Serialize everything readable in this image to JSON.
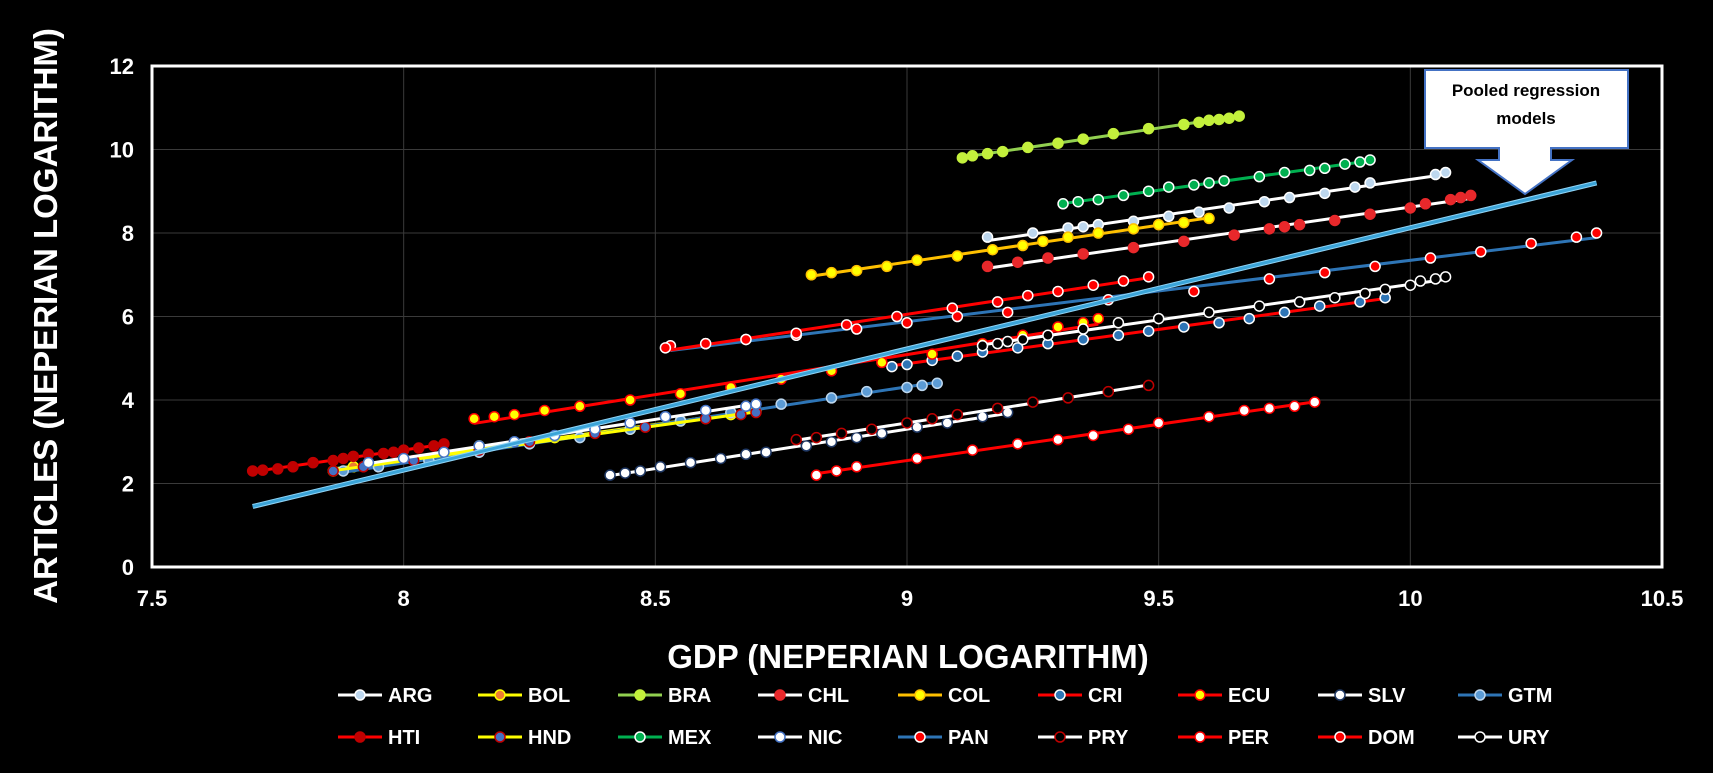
{
  "chart_data": {
    "type": "scatter",
    "title": "",
    "xlabel": "GDP (NEPERIAN LOGARITHM)",
    "ylabel": "ARTICLES (NEPERIAN LOGARITHM)",
    "xlim": [
      7.5,
      10.5
    ],
    "ylim": [
      0,
      12
    ],
    "xticks": [
      "7.5",
      "8",
      "8.5",
      "9",
      "9.5",
      "10",
      "10.5"
    ],
    "yticks": [
      "0",
      "2",
      "4",
      "6",
      "8",
      "10",
      "12"
    ],
    "grid": true,
    "legend_position": "bottom",
    "annotation": {
      "text": "Pooled regression models",
      "points_to": [
        10.24,
        8.95
      ]
    },
    "pooled_line": {
      "x": [
        7.7,
        10.37
      ],
      "y": [
        1.45,
        9.2
      ],
      "color": "#3BA4D8"
    },
    "series": [
      {
        "name": "ARG",
        "line_color": "#FFFFFF",
        "marker_fill": "#BDD7EE",
        "marker_edge": "#FFFFFF",
        "x": [
          9.16,
          9.25,
          9.32,
          9.35,
          9.38,
          9.45,
          9.52,
          9.58,
          9.64,
          9.71,
          9.76,
          9.83,
          9.89,
          9.92,
          10.05,
          10.07
        ],
        "y": [
          7.9,
          8.0,
          8.12,
          8.15,
          8.2,
          8.28,
          8.4,
          8.5,
          8.6,
          8.75,
          8.85,
          8.95,
          9.1,
          9.2,
          9.4,
          9.45
        ]
      },
      {
        "name": "BOL",
        "line_color": "#FFFF00",
        "marker_fill": "#ED7D31",
        "marker_edge": "#FFFF00",
        "x": [
          7.86,
          7.9,
          8.0,
          8.15,
          8.3,
          8.45,
          8.55,
          8.65,
          8.7
        ],
        "y": [
          2.3,
          2.4,
          2.6,
          2.9,
          3.1,
          3.3,
          3.5,
          3.65,
          3.75
        ]
      },
      {
        "name": "BRA",
        "line_color": "#92D050",
        "marker_fill": "#C3F03C",
        "marker_edge": "#C3F03C",
        "x": [
          9.11,
          9.13,
          9.16,
          9.19,
          9.24,
          9.3,
          9.35,
          9.41,
          9.48,
          9.55,
          9.58,
          9.6,
          9.62,
          9.64,
          9.66
        ],
        "y": [
          9.8,
          9.85,
          9.9,
          9.95,
          10.05,
          10.15,
          10.25,
          10.38,
          10.5,
          10.6,
          10.65,
          10.7,
          10.72,
          10.75,
          10.8
        ]
      },
      {
        "name": "CHL",
        "line_color": "#FFFFFF",
        "marker_fill": "#E8282B",
        "marker_edge": "#E8282B",
        "x": [
          9.16,
          9.22,
          9.28,
          9.35,
          9.45,
          9.55,
          9.65,
          9.72,
          9.75,
          9.78,
          9.85,
          9.92,
          10.0,
          10.03,
          10.08,
          10.1,
          10.12
        ],
        "y": [
          7.2,
          7.3,
          7.4,
          7.5,
          7.65,
          7.8,
          7.95,
          8.1,
          8.15,
          8.2,
          8.3,
          8.45,
          8.6,
          8.7,
          8.8,
          8.85,
          8.9
        ]
      },
      {
        "name": "COL",
        "line_color": "#FFC000",
        "marker_fill": "#FFFF00",
        "marker_edge": "#FFC000",
        "x": [
          8.81,
          8.85,
          8.9,
          8.96,
          9.02,
          9.1,
          9.17,
          9.23,
          9.27,
          9.32,
          9.38,
          9.45,
          9.5,
          9.55,
          9.6
        ],
        "y": [
          7.0,
          7.05,
          7.1,
          7.2,
          7.35,
          7.45,
          7.6,
          7.7,
          7.8,
          7.9,
          8.0,
          8.1,
          8.2,
          8.25,
          8.35
        ]
      },
      {
        "name": "CRI",
        "line_color": "#FF0000",
        "marker_fill": "#2E75B6",
        "marker_edge": "#FFFFFF",
        "x": [
          8.97,
          9.0,
          9.05,
          9.1,
          9.15,
          9.22,
          9.28,
          9.35,
          9.42,
          9.48,
          9.55,
          9.62,
          9.68,
          9.75,
          9.82,
          9.9,
          9.95
        ],
        "y": [
          4.8,
          4.85,
          4.95,
          5.05,
          5.15,
          5.25,
          5.35,
          5.45,
          5.55,
          5.65,
          5.75,
          5.85,
          5.95,
          6.1,
          6.25,
          6.35,
          6.45
        ]
      },
      {
        "name": "ECU",
        "line_color": "#FF0000",
        "marker_fill": "#FFFF00",
        "marker_edge": "#FF0000",
        "x": [
          8.14,
          8.18,
          8.22,
          8.28,
          8.35,
          8.45,
          8.55,
          8.65,
          8.75,
          8.85,
          8.95,
          9.05,
          9.15,
          9.23,
          9.3,
          9.35,
          9.38
        ],
        "y": [
          3.55,
          3.6,
          3.65,
          3.75,
          3.85,
          4.0,
          4.15,
          4.3,
          4.5,
          4.7,
          4.9,
          5.1,
          5.35,
          5.55,
          5.75,
          5.85,
          5.95
        ]
      },
      {
        "name": "SLV",
        "line_color": "#FFFFFF",
        "marker_fill": "#FFFFFF",
        "marker_edge": "#1F3864",
        "x": [
          8.41,
          8.44,
          8.47,
          8.51,
          8.57,
          8.63,
          8.68,
          8.72,
          8.8,
          8.85,
          8.9,
          8.95,
          9.02,
          9.08,
          9.15,
          9.2
        ],
        "y": [
          2.2,
          2.25,
          2.3,
          2.4,
          2.5,
          2.6,
          2.7,
          2.75,
          2.9,
          3.0,
          3.1,
          3.2,
          3.35,
          3.45,
          3.6,
          3.7
        ]
      },
      {
        "name": "GTM",
        "line_color": "#2E75B6",
        "marker_fill": "#5B9BD5",
        "marker_edge": "#BDD7EE",
        "x": [
          7.88,
          7.95,
          8.05,
          8.15,
          8.25,
          8.35,
          8.45,
          8.55,
          8.65,
          8.75,
          8.85,
          8.92,
          9.0,
          9.03,
          9.06
        ],
        "y": [
          2.3,
          2.4,
          2.55,
          2.75,
          2.95,
          3.1,
          3.3,
          3.5,
          3.7,
          3.9,
          4.05,
          4.2,
          4.3,
          4.35,
          4.4
        ]
      },
      {
        "name": "HTI",
        "line_color": "#FF0000",
        "marker_fill": "#C00000",
        "marker_edge": "#C00000",
        "x": [
          7.7,
          7.72,
          7.75,
          7.78,
          7.82,
          7.86,
          7.88,
          7.9,
          7.93,
          7.96,
          7.98,
          8.0,
          8.03,
          8.06,
          8.08
        ],
        "y": [
          2.3,
          2.32,
          2.35,
          2.4,
          2.5,
          2.55,
          2.6,
          2.65,
          2.7,
          2.72,
          2.75,
          2.8,
          2.85,
          2.9,
          2.95
        ]
      },
      {
        "name": "HND",
        "line_color": "#FFFF00",
        "marker_fill": "#4472C4",
        "marker_edge": "#C00000",
        "x": [
          7.86,
          7.92,
          8.02,
          8.15,
          8.25,
          8.38,
          8.48,
          8.6,
          8.67,
          8.7
        ],
        "y": [
          2.3,
          2.4,
          2.55,
          2.8,
          3.0,
          3.2,
          3.35,
          3.55,
          3.65,
          3.7
        ]
      },
      {
        "name": "MEX",
        "line_color": "#00B050",
        "marker_fill": "#00B050",
        "marker_edge": "#FFFFFF",
        "x": [
          9.31,
          9.34,
          9.38,
          9.43,
          9.48,
          9.52,
          9.57,
          9.6,
          9.63,
          9.7,
          9.75,
          9.8,
          9.83,
          9.87,
          9.9,
          9.92
        ],
        "y": [
          8.7,
          8.75,
          8.8,
          8.9,
          9.0,
          9.1,
          9.15,
          9.2,
          9.25,
          9.35,
          9.45,
          9.5,
          9.55,
          9.65,
          9.7,
          9.75
        ]
      },
      {
        "name": "NIC",
        "line_color": "#FFFFFF",
        "marker_fill": "#FFFFFF",
        "marker_edge": "#4472C4",
        "x": [
          7.93,
          8.0,
          8.08,
          8.15,
          8.22,
          8.3,
          8.38,
          8.45,
          8.52,
          8.6,
          8.68,
          8.7
        ],
        "y": [
          2.5,
          2.6,
          2.75,
          2.9,
          3.0,
          3.15,
          3.3,
          3.45,
          3.6,
          3.75,
          3.85,
          3.9
        ]
      },
      {
        "name": "PAN",
        "line_color": "#2E75B6",
        "marker_fill": "#FF0000",
        "marker_edge": "#FFFFFF",
        "x": [
          8.53,
          8.6,
          8.68,
          8.78,
          8.9,
          9.0,
          9.1,
          9.2,
          9.4,
          9.57,
          9.72,
          9.83,
          9.93,
          10.04,
          10.14,
          10.24,
          10.33,
          10.37
        ],
        "y": [
          5.3,
          5.35,
          5.45,
          5.55,
          5.7,
          5.85,
          6.0,
          6.1,
          6.4,
          6.6,
          6.9,
          7.05,
          7.2,
          7.4,
          7.55,
          7.75,
          7.9,
          8.0
        ]
      },
      {
        "name": "PRY",
        "line_color": "#FFFFFF",
        "marker_fill": "#000000",
        "marker_edge": "#C00000",
        "x": [
          8.78,
          8.82,
          8.87,
          8.93,
          9.0,
          9.05,
          9.1,
          9.18,
          9.25,
          9.32,
          9.4,
          9.48
        ],
        "y": [
          3.05,
          3.1,
          3.2,
          3.3,
          3.45,
          3.55,
          3.65,
          3.8,
          3.95,
          4.05,
          4.2,
          4.35
        ]
      },
      {
        "name": "PER",
        "line_color": "#FF0000",
        "marker_fill": "#FFFFFF",
        "marker_edge": "#FF0000",
        "x": [
          8.82,
          8.86,
          8.9,
          9.02,
          9.13,
          9.22,
          9.3,
          9.37,
          9.44,
          9.5,
          9.6,
          9.67,
          9.72,
          9.77,
          9.81
        ],
        "y": [
          2.2,
          2.3,
          2.4,
          2.6,
          2.8,
          2.95,
          3.05,
          3.15,
          3.3,
          3.45,
          3.6,
          3.75,
          3.8,
          3.85,
          3.95
        ]
      },
      {
        "name": "DOM",
        "line_color": "#FF0000",
        "marker_fill": "#FF0000",
        "marker_edge": "#FFFFFF",
        "x": [
          8.52,
          8.6,
          8.68,
          8.78,
          8.88,
          8.98,
          9.09,
          9.18,
          9.24,
          9.3,
          9.37,
          9.43,
          9.48
        ],
        "y": [
          5.25,
          5.35,
          5.45,
          5.6,
          5.8,
          6.0,
          6.2,
          6.35,
          6.5,
          6.6,
          6.75,
          6.85,
          6.95
        ]
      },
      {
        "name": "URY",
        "line_color": "#FFFFFF",
        "marker_fill": "#000000",
        "marker_edge": "#FFFFFF",
        "x": [
          9.15,
          9.18,
          9.2,
          9.23,
          9.28,
          9.35,
          9.42,
          9.5,
          9.6,
          9.7,
          9.78,
          9.85,
          9.91,
          9.95,
          10.0,
          10.02,
          10.05,
          10.07
        ],
        "y": [
          5.3,
          5.35,
          5.4,
          5.45,
          5.55,
          5.7,
          5.85,
          5.95,
          6.1,
          6.25,
          6.35,
          6.45,
          6.55,
          6.65,
          6.75,
          6.85,
          6.9,
          6.95
        ]
      }
    ]
  }
}
